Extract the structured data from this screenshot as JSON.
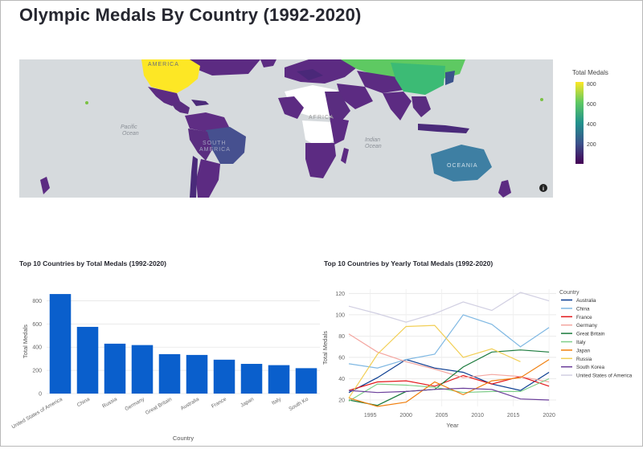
{
  "title": "Olympic Medals By Country (1992-2020)",
  "map": {
    "colorbar_title": "Total Medals",
    "colorbar_ticks": [
      "800",
      "600",
      "400",
      "200"
    ],
    "labels": [
      "AMERICA",
      "Pacific",
      "Ocean",
      "SOUTH",
      "AMERICA",
      "AFRICA",
      "Indian",
      "Ocean",
      "OCEANIA"
    ],
    "info_icon": "i"
  },
  "chart_data": [
    {
      "type": "bar",
      "title": "Top 10 Countries by Total Medals (1992-2020)",
      "xlabel": "Country",
      "ylabel": "Total Medals",
      "categories": [
        "United States of America",
        "China",
        "Russia",
        "Germany",
        "Great Britain",
        "Australia",
        "France",
        "Japan",
        "Italy",
        "South Korea"
      ],
      "tick_labels": [
        "United States of America",
        "China",
        "Russia",
        "Germany",
        "Great Britain",
        "Australia",
        "France",
        "Japan",
        "Italy",
        "South Ko"
      ],
      "values": [
        858,
        575,
        430,
        418,
        340,
        333,
        292,
        256,
        245,
        219
      ],
      "ylim": [
        0,
        900
      ],
      "yticks": [
        0,
        200,
        400,
        600,
        800
      ],
      "color": "#0a5fcc"
    },
    {
      "type": "line",
      "title": "Top 10 Countries by Yearly Total Medals (1992-2020)",
      "xlabel": "Year",
      "ylabel": "Total Medals",
      "legend_title": "Country",
      "x": [
        1992,
        1996,
        2000,
        2004,
        2008,
        2012,
        2016,
        2020
      ],
      "xlim": [
        1992,
        2021
      ],
      "ylim": [
        14,
        124
      ],
      "xticks": [
        1995,
        2000,
        2005,
        2010,
        2015,
        2020
      ],
      "yticks": [
        20,
        40,
        60,
        80,
        100,
        120
      ],
      "series": [
        {
          "name": "Australia",
          "color": "#0b3d91",
          "values": [
            27,
            41,
            58,
            50,
            46,
            35,
            29,
            46
          ]
        },
        {
          "name": "China",
          "color": "#7fb8e3",
          "values": [
            54,
            50,
            58,
            63,
            100,
            91,
            70,
            88
          ]
        },
        {
          "name": "France",
          "color": "#e31a1c",
          "values": [
            29,
            37,
            38,
            33,
            43,
            35,
            42,
            33
          ]
        },
        {
          "name": "Germany",
          "color": "#f4a6a0",
          "values": [
            82,
            65,
            56,
            49,
            41,
            44,
            42,
            37
          ]
        },
        {
          "name": "Great Britain",
          "color": "#1a7a3c",
          "values": [
            20,
            15,
            28,
            30,
            51,
            65,
            67,
            65
          ]
        },
        {
          "name": "Italy",
          "color": "#7fcf8a",
          "values": [
            19,
            35,
            34,
            32,
            27,
            28,
            28,
            40
          ]
        },
        {
          "name": "Japan",
          "color": "#f07f0e",
          "values": [
            22,
            14,
            18,
            37,
            25,
            38,
            41,
            58
          ]
        },
        {
          "name": "Russia",
          "color": "#f2cf56",
          "values": [
            22,
            63,
            89,
            90,
            60,
            68,
            56,
            null
          ]
        },
        {
          "name": "South Korea",
          "color": "#6a3d9a",
          "values": [
            29,
            27,
            28,
            30,
            31,
            30,
            21,
            20
          ]
        },
        {
          "name": "United States of America",
          "color": "#d1cfe2",
          "values": [
            108,
            101,
            93,
            101,
            112,
            104,
            121,
            113
          ]
        }
      ]
    }
  ]
}
